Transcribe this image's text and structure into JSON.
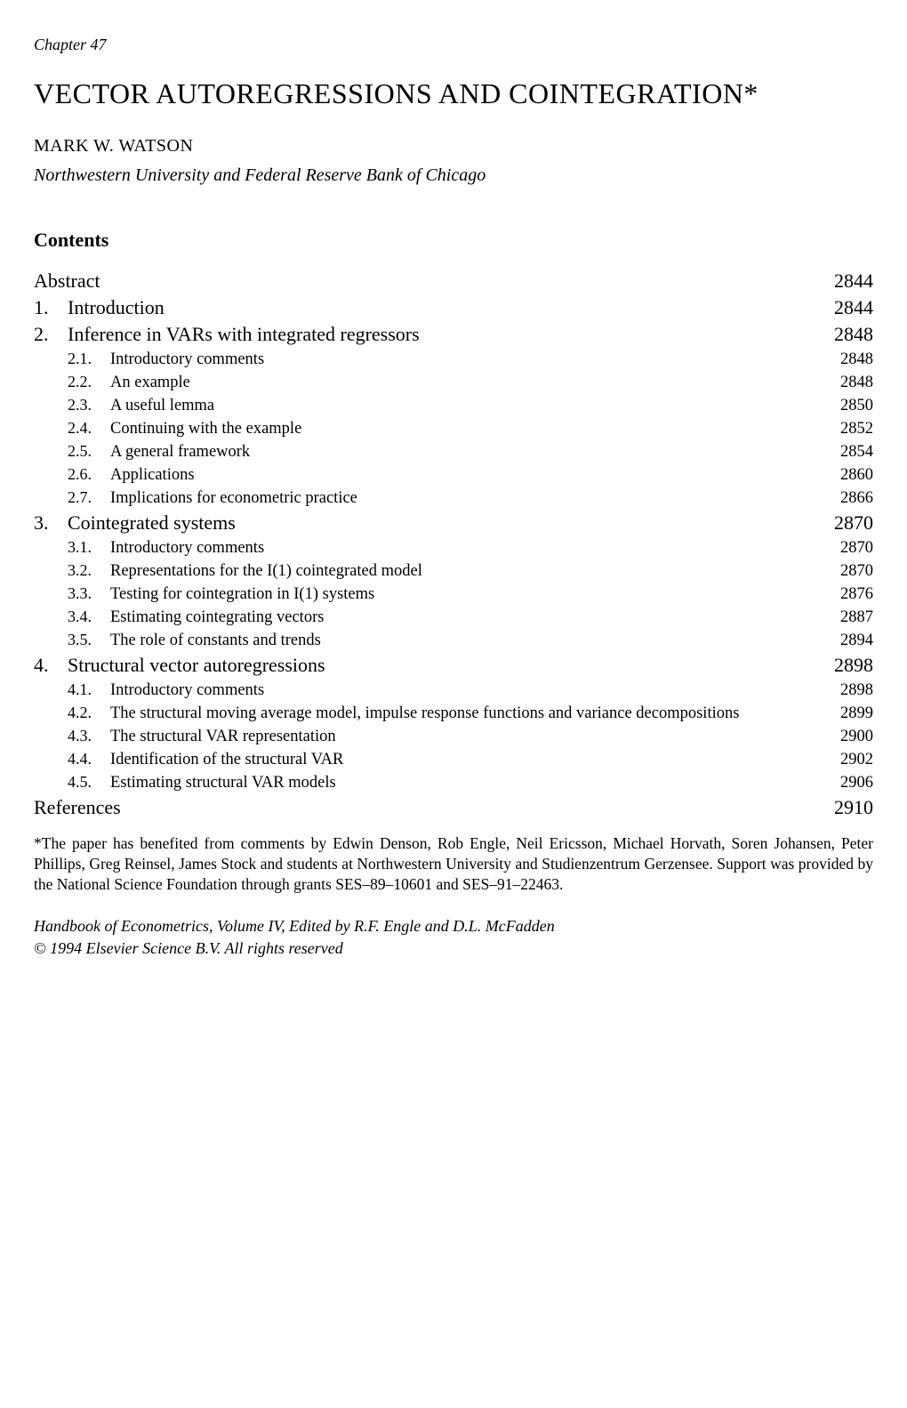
{
  "chapter_label": "Chapter 47",
  "title": "VECTOR AUTOREGRESSIONS AND COINTEGRATION*",
  "author": "MARK W. WATSON",
  "affiliation": "Northwestern University and Federal Reserve Bank of Chicago",
  "contents_heading": "Contents",
  "toc": [
    {
      "level": 0,
      "num": "",
      "label": "Abstract",
      "page": "2844"
    },
    {
      "level": 0,
      "num": "1.",
      "label": "Introduction",
      "page": "2844"
    },
    {
      "level": 0,
      "num": "2.",
      "label": "Inference in VARs with integrated regressors",
      "page": "2848"
    },
    {
      "level": 1,
      "num": "2.1.",
      "label": "Introductory comments",
      "page": "2848"
    },
    {
      "level": 1,
      "num": "2.2.",
      "label": "An example",
      "page": "2848"
    },
    {
      "level": 1,
      "num": "2.3.",
      "label": "A useful lemma",
      "page": "2850"
    },
    {
      "level": 1,
      "num": "2.4.",
      "label": "Continuing with the example",
      "page": "2852"
    },
    {
      "level": 1,
      "num": "2.5.",
      "label": "A general framework",
      "page": "2854"
    },
    {
      "level": 1,
      "num": "2.6.",
      "label": "Applications",
      "page": "2860"
    },
    {
      "level": 1,
      "num": "2.7.",
      "label": "Implications for econometric practice",
      "page": "2866"
    },
    {
      "level": 0,
      "num": "3.",
      "label": "Cointegrated systems",
      "page": "2870"
    },
    {
      "level": 1,
      "num": "3.1.",
      "label": "Introductory comments",
      "page": "2870"
    },
    {
      "level": 1,
      "num": "3.2.",
      "label": "Representations for the I(1) cointegrated model",
      "page": "2870"
    },
    {
      "level": 1,
      "num": "3.3.",
      "label": "Testing for cointegration in I(1) systems",
      "page": "2876"
    },
    {
      "level": 1,
      "num": "3.4.",
      "label": "Estimating cointegrating vectors",
      "page": "2887"
    },
    {
      "level": 1,
      "num": "3.5.",
      "label": "The role of constants and trends",
      "page": "2894"
    },
    {
      "level": 0,
      "num": "4.",
      "label": "Structural vector autoregressions",
      "page": "2898"
    },
    {
      "level": 1,
      "num": "4.1.",
      "label": "Introductory comments",
      "page": "2898"
    },
    {
      "level": 1,
      "num": "4.2.",
      "label": "The structural moving average model, impulse response functions and variance decompositions",
      "page": "2899"
    },
    {
      "level": 1,
      "num": "4.3.",
      "label": "The structural VAR representation",
      "page": "2900"
    },
    {
      "level": 1,
      "num": "4.4.",
      "label": "Identification of the structural VAR",
      "page": "2902"
    },
    {
      "level": 1,
      "num": "4.5.",
      "label": "Estimating structural VAR models",
      "page": "2906"
    },
    {
      "level": 0,
      "num": "",
      "label": "References",
      "page": "2910"
    }
  ],
  "footnote": "*The paper has benefited from comments by Edwin Denson, Rob Engle, Neil Ericsson, Michael Horvath, Soren Johansen, Peter Phillips, Greg Reinsel, James Stock and students at Northwestern University and Studienzentrum Gerzensee. Support was provided by the National Science Foundation through grants SES–89–10601 and SES–91–22463.",
  "pubinfo_line1": "Handbook of Econometrics, Volume IV, Edited by R.F. Engle and D.L. McFadden",
  "pubinfo_line2": "© 1994 Elsevier Science B.V. All rights reserved"
}
